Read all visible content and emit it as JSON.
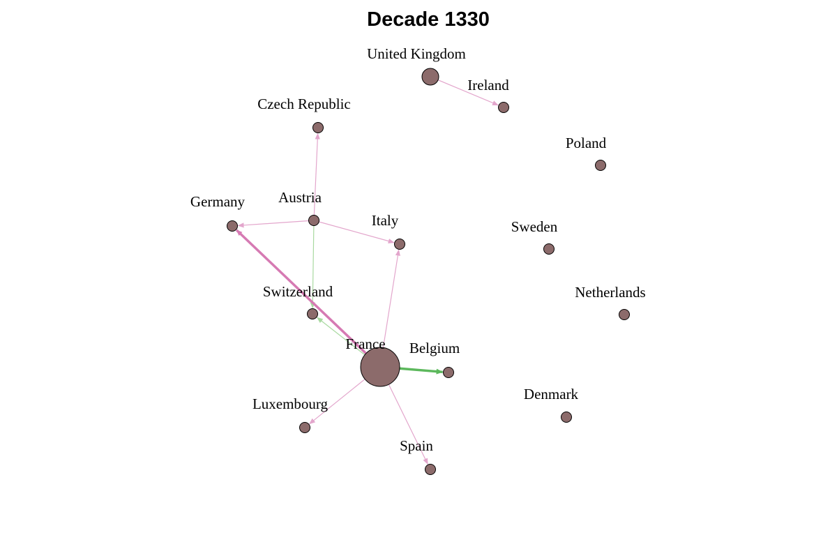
{
  "title": "Decade 1330",
  "colors": {
    "node_fill": "#8c6b6b",
    "node_stroke": "#000000",
    "edge_pink": "#e3a6cc",
    "edge_pink_strong": "#d67ab3",
    "edge_green": "#a8d9a0",
    "edge_green_strong": "#5cb85c"
  },
  "nodes": [
    {
      "id": "united-kingdom",
      "label": "United Kingdom",
      "size": "medium"
    },
    {
      "id": "ireland",
      "label": "Ireland",
      "size": "small"
    },
    {
      "id": "czech-republic",
      "label": "Czech Republic",
      "size": "small"
    },
    {
      "id": "poland",
      "label": "Poland",
      "size": "small"
    },
    {
      "id": "austria",
      "label": "Austria",
      "size": "small"
    },
    {
      "id": "germany",
      "label": "Germany",
      "size": "small"
    },
    {
      "id": "italy",
      "label": "Italy",
      "size": "small"
    },
    {
      "id": "sweden",
      "label": "Sweden",
      "size": "small"
    },
    {
      "id": "switzerland",
      "label": "Switzerland",
      "size": "small"
    },
    {
      "id": "netherlands",
      "label": "Netherlands",
      "size": "small"
    },
    {
      "id": "france",
      "label": "France",
      "size": "large"
    },
    {
      "id": "belgium",
      "label": "Belgium",
      "size": "small"
    },
    {
      "id": "luxembourg",
      "label": "Luxembourg",
      "size": "small"
    },
    {
      "id": "denmark",
      "label": "Denmark",
      "size": "small"
    },
    {
      "id": "spain",
      "label": "Spain",
      "size": "small"
    }
  ],
  "edges": [
    {
      "from": "united-kingdom",
      "to": "ireland",
      "color": "pink",
      "weight": "thin"
    },
    {
      "from": "austria",
      "to": "czech-republic",
      "color": "pink",
      "weight": "thin"
    },
    {
      "from": "austria",
      "to": "germany",
      "color": "pink",
      "weight": "thin"
    },
    {
      "from": "austria",
      "to": "italy",
      "color": "pink",
      "weight": "thin"
    },
    {
      "from": "austria",
      "to": "switzerland",
      "color": "green",
      "weight": "thin"
    },
    {
      "from": "france",
      "to": "germany",
      "color": "pink",
      "weight": "strong"
    },
    {
      "from": "france",
      "to": "switzerland",
      "color": "green",
      "weight": "thin"
    },
    {
      "from": "france",
      "to": "italy",
      "color": "pink",
      "weight": "thin"
    },
    {
      "from": "france",
      "to": "belgium",
      "color": "green",
      "weight": "strong"
    },
    {
      "from": "france",
      "to": "luxembourg",
      "color": "pink",
      "weight": "thin"
    },
    {
      "from": "france",
      "to": "spain",
      "color": "pink",
      "weight": "thin"
    }
  ]
}
